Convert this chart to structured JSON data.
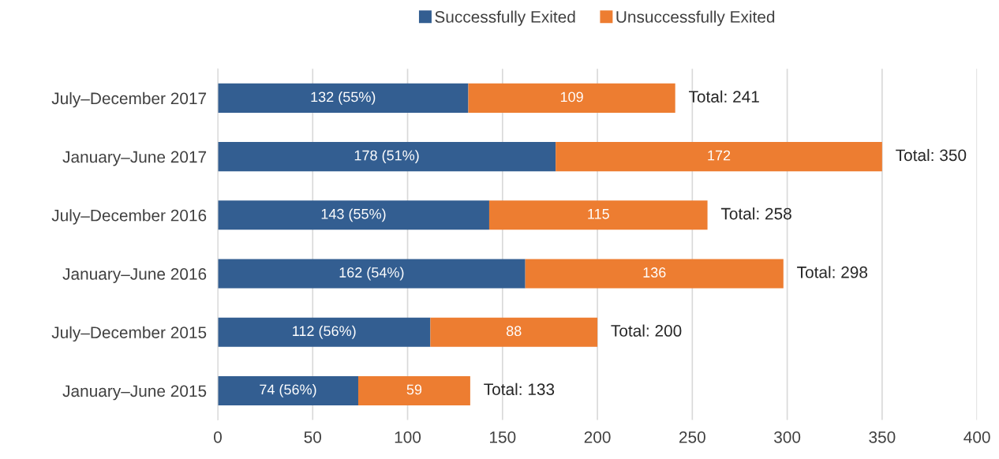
{
  "chart_data": {
    "type": "bar",
    "orientation": "horizontal",
    "stacked": true,
    "categories": [
      "July–December 2017",
      "January–June 2017",
      "July–December 2016",
      "January–June 2016",
      "July–December 2015",
      "January–June 2015"
    ],
    "series": [
      {
        "name": "Successfully Exited",
        "color": "#335e91",
        "values": [
          132,
          178,
          143,
          162,
          112,
          74
        ],
        "value_labels": [
          "132 (55%)",
          "178 (51%)",
          "143 (55%)",
          "162 (54%)",
          "112 (56%)",
          "74 (56%)"
        ]
      },
      {
        "name": "Unsuccessfully Exited",
        "color": "#ed7d31",
        "values": [
          109,
          172,
          115,
          136,
          88,
          59
        ],
        "value_labels": [
          "109",
          "172",
          "115",
          "136",
          "88",
          "59"
        ]
      }
    ],
    "totals": [
      "Total: 241",
      "Total: 350",
      "Total: 258",
      "Total: 298",
      "Total: 200",
      "Total: 133"
    ],
    "xlim": [
      0,
      400
    ],
    "xticks": [
      0,
      50,
      100,
      150,
      200,
      250,
      300,
      350,
      400
    ],
    "grid": "x",
    "legend": "top"
  }
}
